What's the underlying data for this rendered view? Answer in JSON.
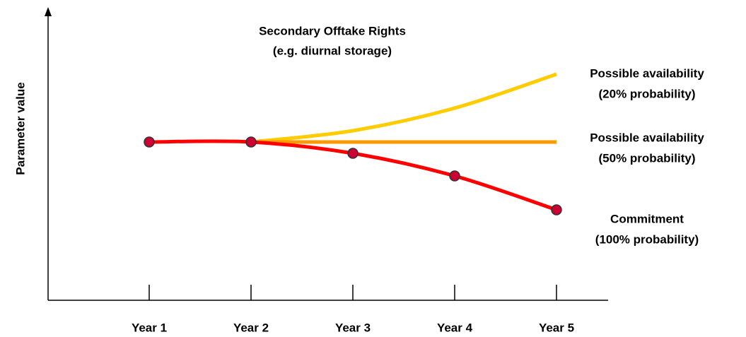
{
  "chart_data": {
    "type": "line",
    "title": "Secondary Offtake Rights",
    "subtitle": "(e.g. diurnal storage)",
    "y_label": "Parameter value",
    "categories": [
      "Year 1",
      "Year 2",
      "Year 3",
      "Year 4",
      "Year 5"
    ],
    "ylim": [
      0,
      100
    ],
    "series": [
      {
        "name": [
          "Possible availability",
          "(20% probability)"
        ],
        "color": "#ffcc00",
        "markers": false,
        "values": [
          null,
          56,
          60,
          68,
          80
        ]
      },
      {
        "name": [
          "Possible availability",
          "(50% probability)"
        ],
        "color": "#ff9900",
        "markers": false,
        "values": [
          null,
          56,
          56,
          56,
          56
        ]
      },
      {
        "name": [
          "Commitment",
          "(100% probability)"
        ],
        "color": "#ff0000",
        "markers": true,
        "marker_color": "#cc0033",
        "values": [
          56,
          56,
          52,
          44,
          32
        ]
      }
    ]
  }
}
